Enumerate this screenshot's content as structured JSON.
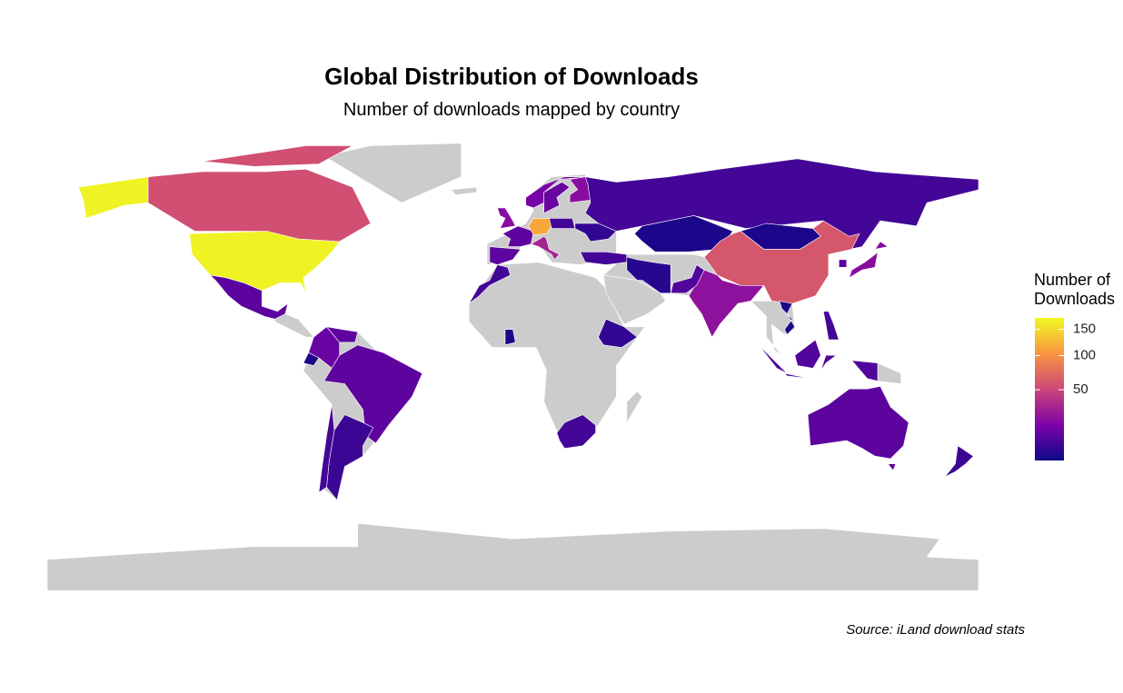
{
  "chart_data": {
    "type": "choropleth",
    "title": "Global Distribution of Downloads",
    "subtitle": "Number of downloads mapped by country",
    "caption": "Source: iLand download stats",
    "legend_title": "Number of Downloads",
    "values": [
      170,
      55,
      10,
      12,
      10,
      2,
      10,
      5,
      6,
      6,
      2,
      4,
      6,
      20,
      10,
      10,
      115,
      30,
      6,
      4,
      15,
      12,
      20,
      6,
      6,
      2,
      2,
      60,
      22,
      8,
      3,
      2,
      20,
      10,
      8,
      6,
      10,
      5
    ],
    "colorscale": "plasma",
    "scale": "sqrt",
    "clim": [
      1,
      175
    ],
    "ticks": [
      50,
      100,
      150
    ],
    "missing_color": "#cccccc"
  }
}
